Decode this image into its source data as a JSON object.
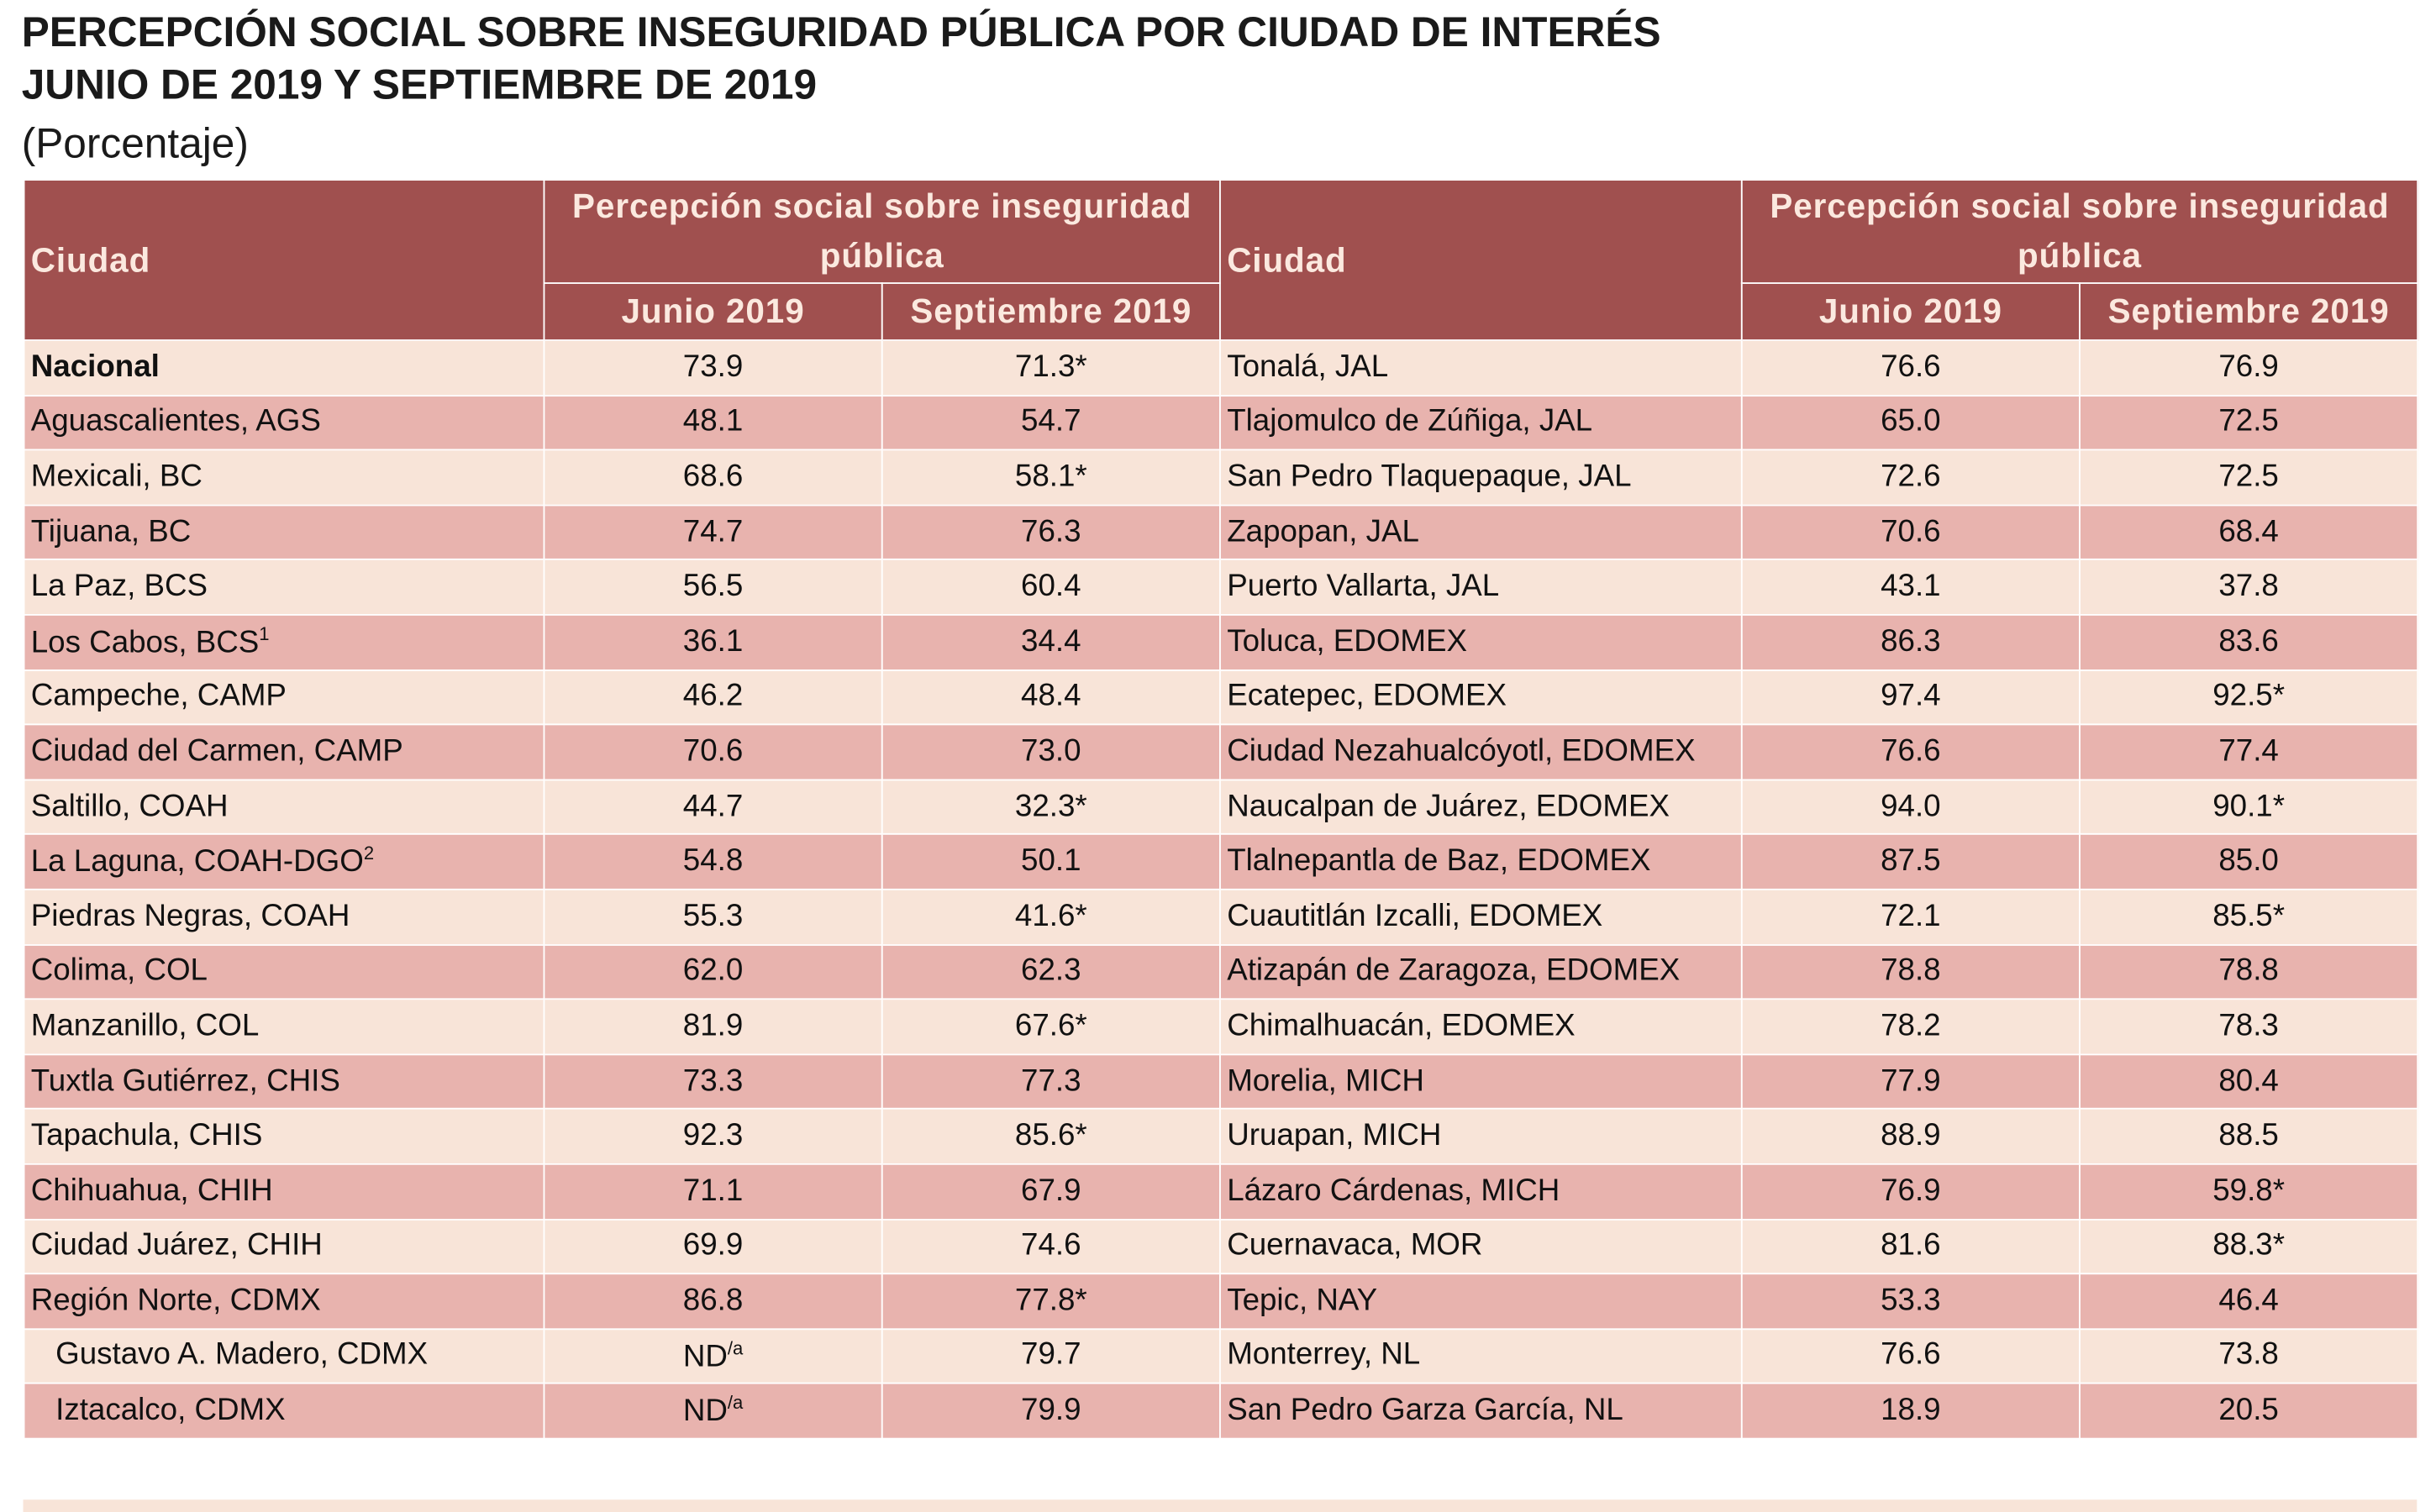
{
  "header": {
    "title_line1": "PERCEPCIÓN SOCIAL SOBRE INSEGURIDAD PÚBLICA POR CIUDAD DE INTERÉS",
    "title_line2": "JUNIO DE 2019 Y SEPTIEMBRE DE 2019",
    "subtitle": "(Porcentaje)"
  },
  "table": {
    "col_city": "Ciudad",
    "col_group": "Percepción social sobre inseguridad pública",
    "col_jun": "Junio 2019",
    "col_sep": "Septiembre 2019",
    "rows": [
      [
        {
          "text": "Nacional",
          "bold": true
        },
        "73.9",
        "71.3*",
        "Tonalá, JAL",
        "76.6",
        "76.9"
      ],
      [
        "Aguascalientes, AGS",
        "48.1",
        "54.7",
        "Tlajomulco de Zúñiga, JAL",
        "65.0",
        "72.5"
      ],
      [
        "Mexicali, BC",
        "68.6",
        "58.1*",
        "San Pedro Tlaquepaque, JAL",
        "72.6",
        "72.5"
      ],
      [
        "Tijuana, BC",
        "74.7",
        "76.3",
        "Zapopan, JAL",
        "70.6",
        "68.4"
      ],
      [
        "La Paz, BCS",
        "56.5",
        "60.4",
        "Puerto Vallarta, JAL",
        "43.1",
        "37.8"
      ],
      [
        {
          "text": "Los Cabos, BCS",
          "sup": "1"
        },
        "36.1",
        "34.4",
        "Toluca, EDOMEX",
        "86.3",
        "83.6"
      ],
      [
        "Campeche, CAMP",
        "46.2",
        "48.4",
        "Ecatepec, EDOMEX",
        "97.4",
        "92.5*"
      ],
      [
        "Ciudad del Carmen, CAMP",
        "70.6",
        "73.0",
        "Ciudad Nezahualcóyotl, EDOMEX",
        "76.6",
        "77.4"
      ],
      [
        "Saltillo, COAH",
        "44.7",
        "32.3*",
        "Naucalpan de Juárez, EDOMEX",
        "94.0",
        "90.1*"
      ],
      [
        {
          "text": "La Laguna, COAH-DGO",
          "sup": "2"
        },
        "54.8",
        "50.1",
        "Tlalnepantla de Baz, EDOMEX",
        "87.5",
        "85.0"
      ],
      [
        "Piedras Negras, COAH",
        "55.3",
        "41.6*",
        "Cuautitlán Izcalli, EDOMEX",
        "72.1",
        "85.5*"
      ],
      [
        "Colima, COL",
        "62.0",
        "62.3",
        "Atizapán de Zaragoza, EDOMEX",
        "78.8",
        "78.8"
      ],
      [
        "Manzanillo, COL",
        "81.9",
        "67.6*",
        "Chimalhuacán, EDOMEX",
        "78.2",
        "78.3"
      ],
      [
        "Tuxtla Gutiérrez, CHIS",
        "73.3",
        "77.3",
        "Morelia, MICH",
        "77.9",
        "80.4"
      ],
      [
        "Tapachula, CHIS",
        "92.3",
        "85.6*",
        "Uruapan, MICH",
        "88.9",
        "88.5"
      ],
      [
        "Chihuahua, CHIH",
        "71.1",
        "67.9",
        "Lázaro Cárdenas, MICH",
        "76.9",
        "59.8*"
      ],
      [
        "Ciudad Juárez, CHIH",
        "69.9",
        "74.6",
        "Cuernavaca, MOR",
        "81.6",
        "88.3*"
      ],
      [
        "Región Norte, CDMX",
        "86.8",
        "77.8*",
        "Tepic, NAY",
        "53.3",
        "46.4"
      ],
      [
        {
          "text": "Gustavo A. Madero, CDMX",
          "indent": true
        },
        {
          "text": "ND",
          "sup": "/a"
        },
        "79.7",
        "Monterrey, NL",
        "76.6",
        "73.8"
      ],
      [
        {
          "text": "Iztacalco, CDMX",
          "indent": true
        },
        {
          "text": "ND",
          "sup": "/a"
        },
        "79.9",
        "San Pedro Garza García, NL",
        "18.9",
        "20.5"
      ]
    ]
  }
}
